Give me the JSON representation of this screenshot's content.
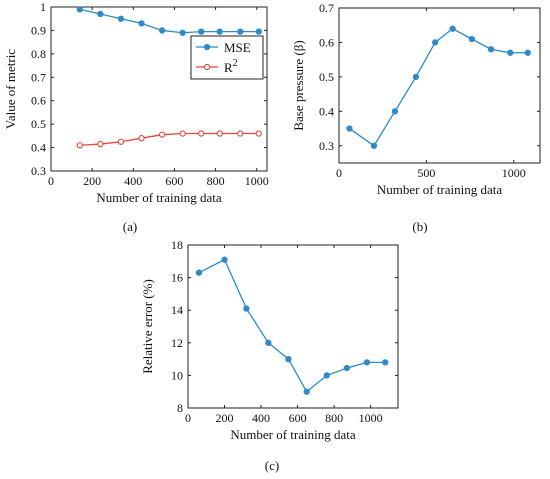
{
  "chart_data": [
    {
      "id": "a",
      "type": "line",
      "caption": "(a)",
      "xlabel": "Number of training data",
      "ylabel": "Value of metric",
      "xlim": [
        0,
        1050
      ],
      "ylim": [
        0.3,
        1.0
      ],
      "xticks": [
        0,
        200,
        400,
        600,
        800,
        1000
      ],
      "yticks": [
        0.3,
        0.4,
        0.5,
        0.6,
        0.7,
        0.8,
        0.9,
        1.0
      ],
      "ytick_labels": [
        "0.3",
        "0.4",
        "0.5",
        "0.6",
        "0.7",
        "0.8",
        "0.9",
        "1"
      ],
      "legend_position": "top-right",
      "series": [
        {
          "name": "MSE",
          "marker": "filled-circle",
          "color": "#2E8BC8",
          "x": [
            140,
            240,
            340,
            440,
            540,
            640,
            730,
            820,
            920,
            1010
          ],
          "y": [
            0.99,
            0.97,
            0.95,
            0.93,
            0.9,
            0.89,
            0.895,
            0.895,
            0.895,
            0.895
          ]
        },
        {
          "name": "R²",
          "name_base": "R",
          "name_sup": "2",
          "marker": "open-circle",
          "color": "#E8453C",
          "x": [
            140,
            240,
            340,
            440,
            540,
            640,
            730,
            820,
            920,
            1010
          ],
          "y": [
            0.41,
            0.415,
            0.425,
            0.44,
            0.455,
            0.46,
            0.46,
            0.46,
            0.46,
            0.46
          ]
        }
      ]
    },
    {
      "id": "b",
      "type": "line",
      "caption": "(b)",
      "xlabel": "Number of training data",
      "ylabel": "Base pressure (β)",
      "xlim": [
        0,
        1150
      ],
      "ylim": [
        0.25,
        0.7
      ],
      "xticks": [
        0,
        500,
        1000
      ],
      "yticks": [
        0.3,
        0.4,
        0.5,
        0.6,
        0.7
      ],
      "ytick_labels": [
        "0.3",
        "0.4",
        "0.5",
        "0.6",
        "0.7"
      ],
      "series": [
        {
          "marker": "filled-circle",
          "color": "#2E8BC8",
          "x": [
            60,
            200,
            320,
            440,
            550,
            650,
            760,
            870,
            980,
            1080
          ],
          "y": [
            0.35,
            0.3,
            0.4,
            0.5,
            0.6,
            0.64,
            0.61,
            0.58,
            0.57,
            0.57
          ]
        }
      ]
    },
    {
      "id": "c",
      "type": "line",
      "caption": "(c)",
      "xlabel": "Number of training data",
      "ylabel": "Relative error (%)",
      "xlim": [
        0,
        1150
      ],
      "ylim": [
        8,
        18
      ],
      "xticks": [
        0,
        200,
        400,
        600,
        800,
        1000
      ],
      "yticks": [
        8,
        10,
        12,
        14,
        16,
        18
      ],
      "ytick_labels": [
        "8",
        "10",
        "12",
        "14",
        "16",
        "18"
      ],
      "series": [
        {
          "marker": "filled-circle",
          "color": "#2E8BC8",
          "x": [
            60,
            200,
            320,
            440,
            550,
            650,
            760,
            870,
            980,
            1080
          ],
          "y": [
            16.3,
            17.1,
            14.1,
            12.0,
            11.0,
            9.0,
            10.0,
            10.45,
            10.8,
            10.8
          ]
        }
      ]
    }
  ]
}
